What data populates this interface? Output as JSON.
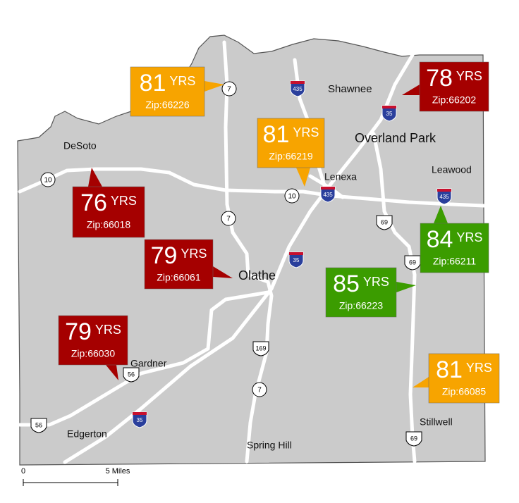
{
  "unit": "YRS",
  "callouts": [
    {
      "years": 81,
      "zip": "Zip:66226",
      "color": "#f7a400"
    },
    {
      "years": 78,
      "zip": "Zip:66202",
      "color": "#a50000"
    },
    {
      "years": 81,
      "zip": "Zip:66219",
      "color": "#f7a400"
    },
    {
      "years": 76,
      "zip": "Zip:66018",
      "color": "#a50000"
    },
    {
      "years": 79,
      "zip": "Zip:66061",
      "color": "#a50000"
    },
    {
      "years": 85,
      "zip": "Zip:66223",
      "color": "#3b9c00"
    },
    {
      "years": 84,
      "zip": "Zip:66211",
      "color": "#3b9c00"
    },
    {
      "years": 79,
      "zip": "Zip:66030",
      "color": "#a50000"
    },
    {
      "years": 81,
      "zip": "Zip:66085",
      "color": "#f7a400"
    }
  ],
  "cities": [
    "Shawnee",
    "Overland Park",
    "DeSoto",
    "Lenexa",
    "Leawood",
    "Olathe",
    "Gardner",
    "Edgerton",
    "Stillwell",
    "Spring Hill"
  ],
  "highways": [
    {
      "label": "435",
      "kind": "interstate"
    },
    {
      "label": "35",
      "kind": "interstate"
    },
    {
      "label": "435",
      "kind": "interstate"
    },
    {
      "label": "435",
      "kind": "interstate"
    },
    {
      "label": "35",
      "kind": "interstate"
    },
    {
      "label": "35",
      "kind": "interstate"
    },
    {
      "label": "7",
      "kind": "state"
    },
    {
      "label": "10",
      "kind": "state"
    },
    {
      "label": "10",
      "kind": "state"
    },
    {
      "label": "7",
      "kind": "state"
    },
    {
      "label": "7",
      "kind": "state"
    },
    {
      "label": "69",
      "kind": "us"
    },
    {
      "label": "69",
      "kind": "us"
    },
    {
      "label": "56",
      "kind": "us"
    },
    {
      "label": "169",
      "kind": "us"
    },
    {
      "label": "56",
      "kind": "us"
    },
    {
      "label": "69",
      "kind": "us"
    }
  ],
  "scale": {
    "start": "0",
    "end": "5 Miles"
  }
}
